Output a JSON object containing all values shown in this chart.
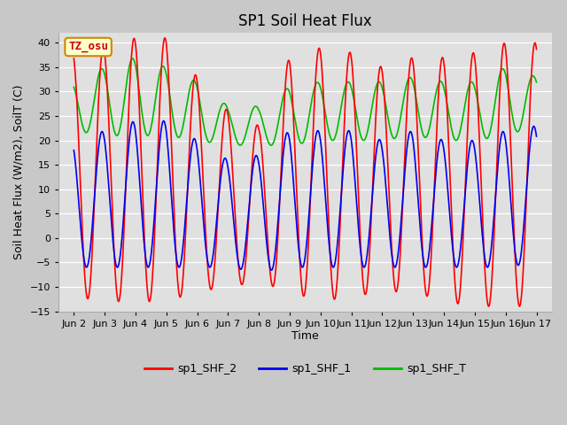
{
  "title": "SP1 Soil Heat Flux",
  "ylabel": "Soil Heat Flux (W/m2), SoilT (C)",
  "xlabel": "Time",
  "ylim": [
    -15,
    42
  ],
  "yticks": [
    -15,
    -10,
    -5,
    0,
    5,
    10,
    15,
    20,
    25,
    30,
    35,
    40
  ],
  "xtick_labels": [
    "Jun 2",
    "Jun 3",
    "Jun 4",
    "Jun 5",
    "Jun 6",
    "Jun 7",
    "Jun 8",
    "Jun 9",
    "Jun 10",
    "Jun 11",
    "Jun 12",
    "Jun 13",
    "Jun 14",
    "Jun 15",
    "Jun 16",
    "Jun 17"
  ],
  "xtick_positions": [
    0,
    1,
    2,
    3,
    4,
    5,
    6,
    7,
    8,
    9,
    10,
    11,
    12,
    13,
    14,
    15
  ],
  "color_shf2": "#ff0000",
  "color_shf1": "#0000ee",
  "color_shfT": "#00bb00",
  "line_width": 1.2,
  "annotation_text": "TZ_osu",
  "annotation_color": "#cc0000",
  "annotation_bg": "#ffffcc",
  "annotation_border": "#cc8800",
  "fig_bg": "#c8c8c8",
  "plot_bg": "#e0e0e0",
  "title_fontsize": 12,
  "label_fontsize": 9,
  "tick_fontsize": 8
}
